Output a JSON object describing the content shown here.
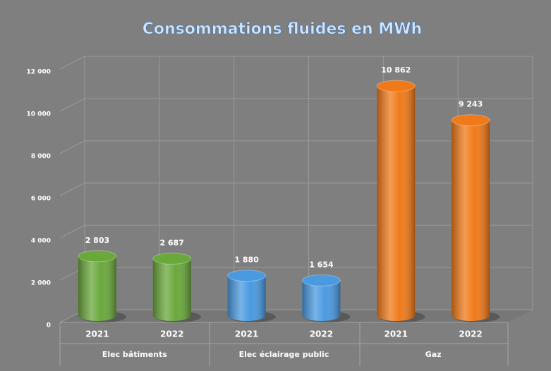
{
  "chart_data": {
    "type": "bar",
    "title": "Consommations fluides en MWh",
    "groups": [
      {
        "label": "Elec bâtiments",
        "color": "#6aa83c",
        "categories": [
          "2021",
          "2022"
        ],
        "values": [
          2803,
          2687
        ],
        "value_labels": [
          "2 803",
          "2 687"
        ]
      },
      {
        "label": "Elec éclairage public",
        "color": "#4a9ae0",
        "categories": [
          "2021",
          "2022"
        ],
        "values": [
          1880,
          1654
        ],
        "value_labels": [
          "1 880",
          "1 654"
        ]
      },
      {
        "label": "Gaz",
        "color": "#f07a1a",
        "categories": [
          "2021",
          "2022"
        ],
        "values": [
          10862,
          9243
        ],
        "value_labels": [
          "10 862",
          "9 243"
        ]
      }
    ],
    "ylim": [
      0,
      12000
    ],
    "yticks": [
      0,
      {
        "value": 2000,
        "label": "2 000"
      },
      {
        "value": 4000,
        "label": "4 000"
      },
      {
        "value": 6000,
        "label": "6 000"
      },
      {
        "value": 8000,
        "label": "8 000"
      },
      {
        "value": 10000,
        "label": "10 000"
      },
      {
        "value": 12000,
        "label": "12 000"
      }
    ],
    "grid": true
  }
}
